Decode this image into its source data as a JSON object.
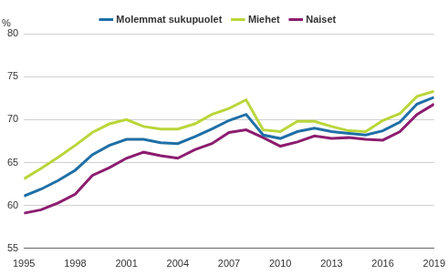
{
  "chart_data": {
    "type": "line",
    "ylabel": "%",
    "x": [
      1995,
      1996,
      1997,
      1998,
      1999,
      2000,
      2001,
      2002,
      2003,
      2004,
      2005,
      2006,
      2007,
      2008,
      2009,
      2010,
      2011,
      2012,
      2013,
      2014,
      2015,
      2016,
      2017,
      2018,
      2019
    ],
    "series": [
      {
        "name": "Molemmat sukupuolet",
        "color": "#1f6fa6",
        "values": [
          61.1,
          61.9,
          62.9,
          64.1,
          65.9,
          67.0,
          67.7,
          67.7,
          67.3,
          67.2,
          68.0,
          68.9,
          69.9,
          70.6,
          68.2,
          67.8,
          68.6,
          69.0,
          68.6,
          68.4,
          68.2,
          68.7,
          69.7,
          71.8,
          72.6
        ]
      },
      {
        "name": "Miehet",
        "color": "#b9d63a",
        "values": [
          63.1,
          64.3,
          65.6,
          67.0,
          68.5,
          69.5,
          70.0,
          69.2,
          68.9,
          68.9,
          69.5,
          70.6,
          71.3,
          72.3,
          68.8,
          68.6,
          69.8,
          69.8,
          69.2,
          68.7,
          68.6,
          69.9,
          70.7,
          72.7,
          73.3
        ]
      },
      {
        "name": "Naiset",
        "color": "#8c1d6f",
        "values": [
          59.1,
          59.5,
          60.3,
          61.3,
          63.5,
          64.4,
          65.5,
          66.2,
          65.8,
          65.5,
          66.5,
          67.2,
          68.5,
          68.8,
          67.9,
          66.9,
          67.4,
          68.1,
          67.8,
          67.9,
          67.7,
          67.6,
          68.6,
          70.6,
          71.8
        ]
      }
    ],
    "xlim": [
      1995,
      2019
    ],
    "xticks": [
      1995,
      1998,
      2001,
      2004,
      2007,
      2010,
      2013,
      2016,
      2019
    ],
    "ylim": [
      55,
      80
    ],
    "yticks": [
      55,
      60,
      65,
      70,
      75,
      80
    ],
    "grid": true,
    "legend": "top"
  }
}
